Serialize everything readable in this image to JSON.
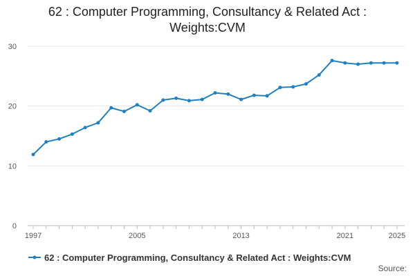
{
  "chart_data": {
    "type": "line",
    "title_line1": "62 : Computer Programming, Consultancy & Related Act :",
    "title_line2": "Weights:CVM",
    "xlabel": "",
    "ylabel": "",
    "x": [
      1997,
      1998,
      1999,
      2000,
      2001,
      2002,
      2003,
      2004,
      2005,
      2006,
      2007,
      2008,
      2009,
      2010,
      2011,
      2012,
      2013,
      2014,
      2015,
      2016,
      2017,
      2018,
      2019,
      2020,
      2021,
      2022,
      2023,
      2024,
      2025
    ],
    "series": [
      {
        "name": "62 : Computer Programming, Consultancy & Related Act : Weights:CVM",
        "color": "#1f7fc0",
        "values": [
          11.9,
          14.0,
          14.5,
          15.3,
          16.4,
          17.2,
          19.7,
          19.1,
          20.2,
          19.2,
          21.0,
          21.3,
          20.9,
          21.1,
          22.2,
          22.0,
          21.1,
          21.8,
          21.7,
          23.1,
          23.2,
          23.7,
          25.2,
          27.6,
          27.2,
          27.0,
          27.2,
          27.2,
          27.2
        ]
      }
    ],
    "xticks": [
      1997,
      2005,
      2013,
      2021,
      2025
    ],
    "yticks": [
      0,
      10,
      20,
      30
    ],
    "xlim": [
      1997,
      2025
    ],
    "ylim": [
      0,
      30
    ],
    "grid": true,
    "legend_position": "bottom-left"
  },
  "source_label": "Source:"
}
